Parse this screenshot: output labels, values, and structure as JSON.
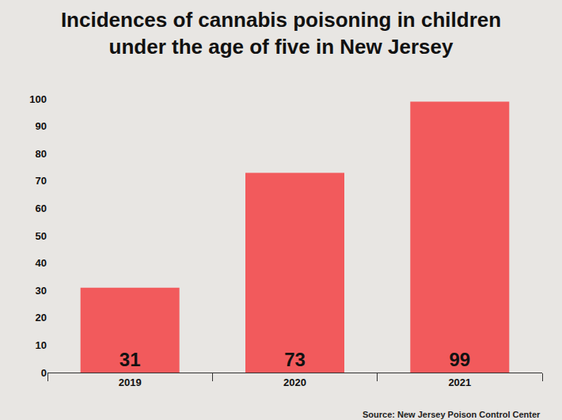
{
  "chart_data": {
    "type": "bar",
    "title": "Incidences of cannabis poisoning in children\nunder the age of five in New Jersey",
    "categories": [
      "2019",
      "2020",
      "2021"
    ],
    "values": [
      31,
      73,
      99
    ],
    "color": "#f25a5c",
    "ylim": [
      0,
      100
    ],
    "yticks": [
      0,
      10,
      20,
      30,
      40,
      50,
      60,
      70,
      80,
      90,
      100
    ],
    "grid": false,
    "data_labels": true,
    "source": "Source: New Jersey Poison Control Center"
  }
}
